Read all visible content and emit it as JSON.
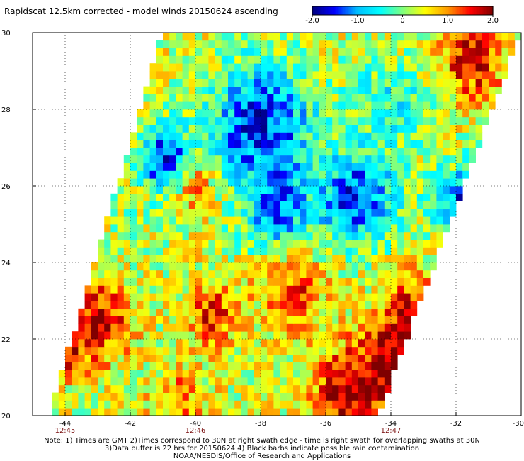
{
  "chart_data": {
    "type": "heatmap",
    "title": "Rapidscat 12.5km corrected - model winds 20150624 ascending",
    "colorbar": {
      "range": [
        -2.0,
        2.0
      ],
      "ticks": [
        "-2.0",
        "-1.0",
        "0",
        "1.0",
        "2.0"
      ],
      "colors": [
        "#00007f",
        "#0000ff",
        "#00bfff",
        "#00ffff",
        "#7fff7f",
        "#ffff00",
        "#ff9900",
        "#ff0000",
        "#7f0000"
      ]
    },
    "x_axis": {
      "range": [
        -45,
        -30
      ],
      "ticks": [
        -44,
        -42,
        -40,
        -38,
        -36,
        -34,
        -32,
        -30
      ],
      "tick_labels": [
        "-44",
        "-42",
        "-40",
        "-38",
        "-36",
        "-34",
        "-32",
        "-30"
      ]
    },
    "y_axis": {
      "range": [
        20,
        30
      ],
      "ticks": [
        20,
        22,
        24,
        26,
        28,
        30
      ],
      "tick_labels": [
        "20",
        "22",
        "24",
        "26",
        "28",
        "30"
      ]
    },
    "grid": "dotted",
    "swath_times": [
      {
        "lon": -44,
        "label": "12:45"
      },
      {
        "lon": -40,
        "label": "12:46"
      },
      {
        "lon": -34,
        "label": "12:47"
      }
    ],
    "swath_corners": [
      [
        -44.5,
        20
      ],
      [
        -34.4,
        20
      ],
      [
        -30,
        30
      ],
      [
        -41,
        30
      ]
    ],
    "regions": [
      {
        "lon": -43.0,
        "lat": 22.5,
        "value": 1.7,
        "radius": 1.0
      },
      {
        "lon": -44.0,
        "lat": 21.6,
        "value": 1.2,
        "radius": 0.7
      },
      {
        "lon": -39.5,
        "lat": 22.7,
        "value": 1.4,
        "radius": 0.8
      },
      {
        "lon": -37.0,
        "lat": 23.3,
        "value": 1.3,
        "radius": 1.0
      },
      {
        "lon": -33.8,
        "lat": 21.2,
        "value": 1.9,
        "radius": 1.4
      },
      {
        "lon": -33.0,
        "lat": 22.6,
        "value": 1.6,
        "radius": 1.0
      },
      {
        "lon": -35.5,
        "lat": 20.6,
        "value": 1.5,
        "radius": 1.0
      },
      {
        "lon": -40.5,
        "lat": 20.4,
        "value": 1.1,
        "radius": 0.8
      },
      {
        "lon": -31.5,
        "lat": 29.3,
        "value": 1.6,
        "radius": 1.0
      },
      {
        "lon": -40.0,
        "lat": 26.0,
        "value": 1.3,
        "radius": 0.6
      },
      {
        "lon": -38.0,
        "lat": 27.6,
        "value": -1.5,
        "radius": 1.6
      },
      {
        "lon": -41.0,
        "lat": 26.7,
        "value": -1.5,
        "radius": 0.8
      },
      {
        "lon": -35.0,
        "lat": 25.7,
        "value": -1.4,
        "radius": 1.2
      },
      {
        "lon": -31.5,
        "lat": 25.5,
        "value": -1.7,
        "radius": 1.0
      },
      {
        "lon": -37.5,
        "lat": 25.3,
        "value": -1.0,
        "radius": 1.0
      },
      {
        "lon": -34.0,
        "lat": 28.2,
        "value": -0.5,
        "radius": 1.2
      },
      {
        "lon": -42.0,
        "lat": 24.7,
        "value": 0.2,
        "radius": 1.2
      },
      {
        "lon": -36.0,
        "lat": 24.2,
        "value": 0.3,
        "radius": 1.2
      }
    ]
  },
  "notes": {
    "line1": "Note: 1) Times are GMT 2)Times correspond to 30N at right swath edge - time is right swath for overlapping swaths at 30N",
    "line2": "3)Data buffer is 22 hrs for 20150624 4) Black barbs indicate possible rain contamination",
    "line3": "NOAA/NESDIS/Office of Research and Applications"
  }
}
